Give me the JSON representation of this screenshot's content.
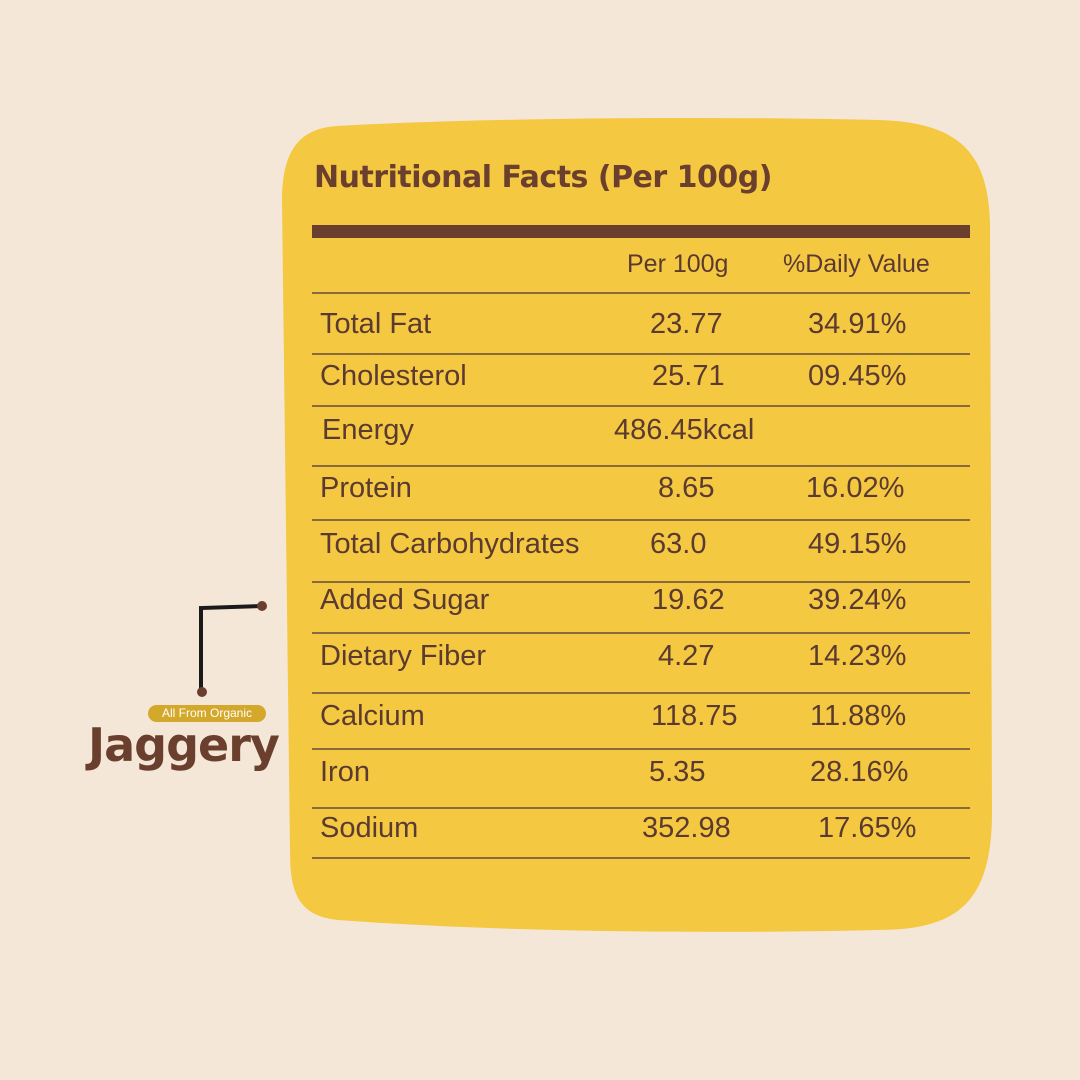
{
  "title": "Nutritional Facts (Per 100g)",
  "headers": {
    "per": "Per 100g",
    "dv": "%Daily Value"
  },
  "rows": [
    {
      "name": "Total Fat",
      "per": "23.77",
      "dv": "34.91%"
    },
    {
      "name": "Cholesterol",
      "per": "25.71",
      "dv": "09.45%"
    },
    {
      "name": "Energy",
      "per": "486.45kcal",
      "dv": ""
    },
    {
      "name": "Protein",
      "per": "8.65",
      "dv": "16.02%"
    },
    {
      "name": "Total Carbohydrates",
      "per": "63.0",
      "dv": "49.15%"
    },
    {
      "name": "Added Sugar",
      "per": "19.62",
      "dv": "39.24%"
    },
    {
      "name": "Dietary Fiber",
      "per": "4.27",
      "dv": "14.23%"
    },
    {
      "name": "Calcium",
      "per": "118.75",
      "dv": "11.88%"
    },
    {
      "name": "Iron",
      "per": "5.35",
      "dv": "28.16%"
    },
    {
      "name": "Sodium",
      "per": "352.98",
      "dv": "17.65%"
    }
  ],
  "brand": {
    "tagline": "All From Organic",
    "name": "Jaggery"
  },
  "colors": {
    "background": "#f4e7d8",
    "card": "#f5c842",
    "text": "#5b3a30",
    "accent": "#6b3f2e"
  }
}
